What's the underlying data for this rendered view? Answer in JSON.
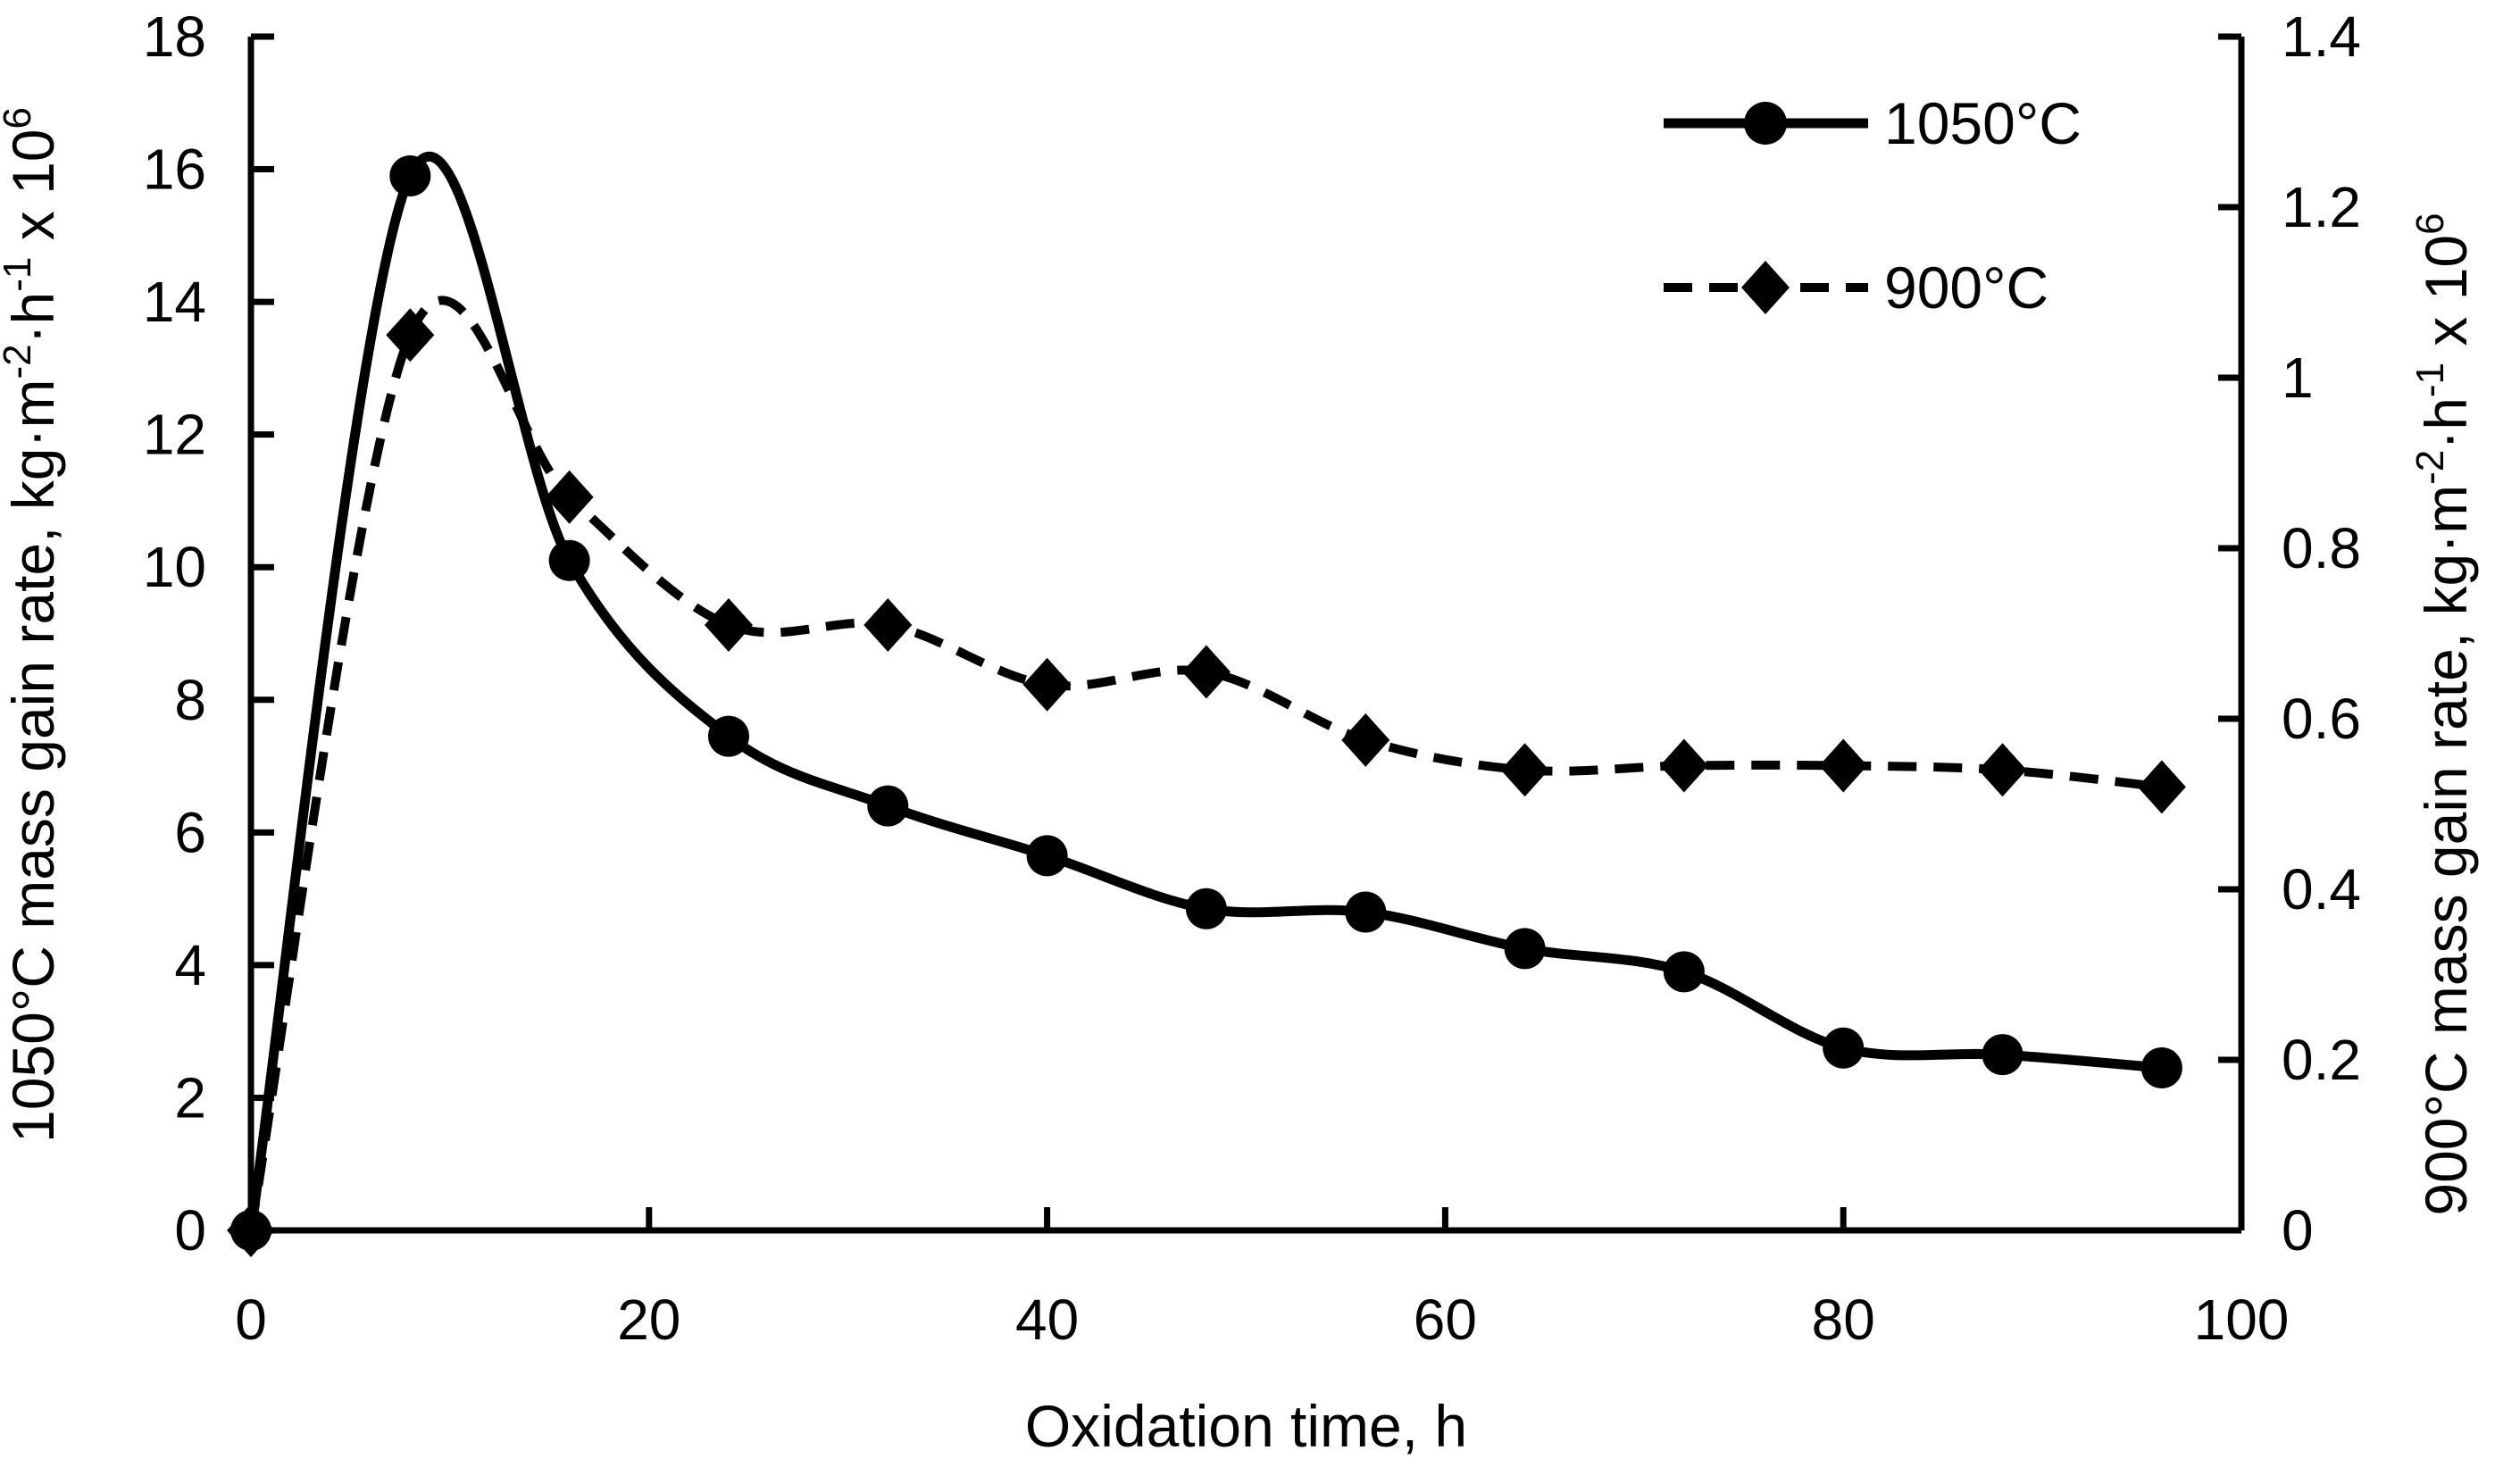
{
  "chart_data": {
    "type": "line",
    "title": "",
    "xlabel": "Oxidation time, h",
    "x": [
      0,
      8,
      16,
      24,
      32,
      40,
      48,
      56,
      64,
      72,
      80,
      88,
      96
    ],
    "x_range": [
      0,
      100
    ],
    "x_ticks": [
      "0",
      "20",
      "40",
      "60",
      "80",
      "100"
    ],
    "grid": false,
    "legend_position": "top-right",
    "colors": {
      "foreground": "#000000",
      "background": "#ffffff"
    },
    "left_axis": {
      "range": [
        0,
        18
      ],
      "tick_step": 2,
      "ticks": [
        "0",
        "2",
        "4",
        "6",
        "8",
        "10",
        "12",
        "14",
        "16",
        "18"
      ],
      "title_plain": "1050°C mass gain rate, kg·m-2·h-1 x 106",
      "title_parts": [
        {
          "t": "1050°C mass gain rate, kg·m"
        },
        {
          "t": "-2",
          "sup": true
        },
        {
          "t": "·h"
        },
        {
          "t": "-1",
          "sup": true
        },
        {
          "t": " x 10"
        },
        {
          "t": "6",
          "sup": true
        }
      ]
    },
    "right_axis": {
      "range": [
        0,
        1.4
      ],
      "tick_step": 0.2,
      "ticks": [
        "0",
        "0.2",
        "0.4",
        "0.6",
        "0.8",
        "1",
        "1.2",
        "1.4"
      ],
      "title_plain": "900°C mass gain rate, kg·m-2·h-1 x 106",
      "title_parts": [
        {
          "t": "900°C mass gain rate, kg·m"
        },
        {
          "t": "-2",
          "sup": true
        },
        {
          "t": "·h"
        },
        {
          "t": "-1",
          "sup": true
        },
        {
          "t": " x 10"
        },
        {
          "t": "6",
          "sup": true
        }
      ]
    },
    "series": [
      {
        "name": "1050°C",
        "axis": "left",
        "line_style": "solid",
        "marker": "circle",
        "color": "#000000",
        "values": [
          0,
          15.9,
          10.1,
          7.45,
          6.4,
          5.65,
          4.85,
          4.8,
          4.25,
          3.9,
          2.75,
          2.65,
          2.45
        ]
      },
      {
        "name": "900°C",
        "axis": "right",
        "line_style": "dashed",
        "marker": "diamond",
        "color": "#000000",
        "values": [
          0,
          1.05,
          0.86,
          0.71,
          0.71,
          0.64,
          0.655,
          0.575,
          0.54,
          0.545,
          0.545,
          0.54,
          0.52
        ]
      }
    ],
    "legend": {
      "items": [
        {
          "label": "1050°C"
        },
        {
          "label": "900°C"
        }
      ]
    }
  }
}
